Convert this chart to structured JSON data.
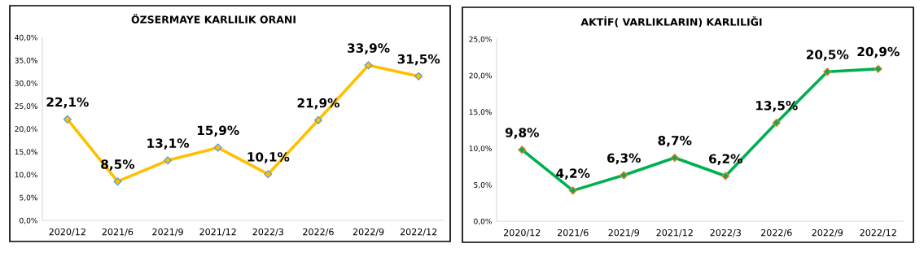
{
  "chart_data": [
    {
      "type": "line",
      "title": "ÖZSERMAYE KARLILIK ORANI",
      "categories": [
        "2020/12",
        "2021/6",
        "2021/9",
        "2021/12",
        "2022/3",
        "2022/6",
        "2022/9",
        "2022/12"
      ],
      "series": [
        {
          "color": "#ffc000",
          "values": [
            22.1,
            8.5,
            13.1,
            15.9,
            10.1,
            21.9,
            33.9,
            31.5
          ],
          "value_labels": [
            "22,1%",
            "8,5%",
            "13,1%",
            "15,9%",
            "10,1%",
            "21,9%",
            "33,9%",
            "31,5%"
          ]
        }
      ],
      "ylim": [
        0,
        40
      ],
      "yticks": [
        {
          "value": 0,
          "label": "0,0%"
        },
        {
          "value": 5,
          "label": "5,0%"
        },
        {
          "value": 10,
          "label": "10,0%"
        },
        {
          "value": 15,
          "label": "15,0%"
        },
        {
          "value": 20,
          "label": "20,0%"
        },
        {
          "value": 25,
          "label": "25,0%"
        },
        {
          "value": 30,
          "label": "30,0%"
        },
        {
          "value": 35,
          "label": "35,0%"
        },
        {
          "value": 40,
          "label": "40,0%"
        }
      ],
      "marker": "diamond",
      "grid": false,
      "legend": false
    },
    {
      "type": "line",
      "title": "AKTİF( VARLIKLARIN) KARLILIĞI",
      "categories": [
        "2020/12",
        "2021/6",
        "2021/9",
        "2021/12",
        "2022/3",
        "2022/6",
        "2022/9",
        "2022/12"
      ],
      "series": [
        {
          "color": "#00b050",
          "values": [
            9.8,
            4.2,
            6.3,
            8.7,
            6.2,
            13.5,
            20.5,
            20.9
          ],
          "value_labels": [
            "9,8%",
            "4,2%",
            "6,3%",
            "8,7%",
            "6,2%",
            "13,5%",
            "20,5%",
            "20,9%"
          ]
        }
      ],
      "ylim": [
        0,
        25
      ],
      "yticks": [
        {
          "value": 0,
          "label": "0,0%"
        },
        {
          "value": 5,
          "label": "5,0%"
        },
        {
          "value": 10,
          "label": "10,0%"
        },
        {
          "value": 15,
          "label": "15,0%"
        },
        {
          "value": 20,
          "label": "20,0%"
        },
        {
          "value": 25,
          "label": "25,0%"
        }
      ],
      "marker": "diamond",
      "grid": false,
      "legend": false
    }
  ]
}
